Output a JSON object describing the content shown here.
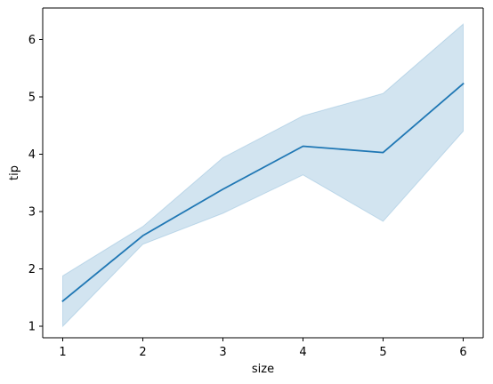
{
  "chart_data": {
    "type": "line",
    "title": "",
    "xlabel": "size",
    "ylabel": "tip",
    "x": [
      1,
      2,
      3,
      4,
      5,
      6
    ],
    "xticks": [
      "1",
      "2",
      "3",
      "4",
      "5",
      "6"
    ],
    "yticks": [
      "1",
      "2",
      "3",
      "4",
      "5",
      "6"
    ],
    "xlim": [
      0.75,
      6.25
    ],
    "ylim": [
      0.8,
      6.55
    ],
    "grid": false,
    "legend": "none",
    "series": [
      {
        "values": [
          1.44,
          2.58,
          3.39,
          4.14,
          4.03,
          5.23
        ],
        "ci_low": [
          1.0,
          2.43,
          2.97,
          3.64,
          2.83,
          4.4
        ],
        "ci_high": [
          1.88,
          2.74,
          3.94,
          4.67,
          5.06,
          6.27
        ],
        "color": "#1f77b4",
        "band_color": "#1f77b4"
      }
    ]
  }
}
